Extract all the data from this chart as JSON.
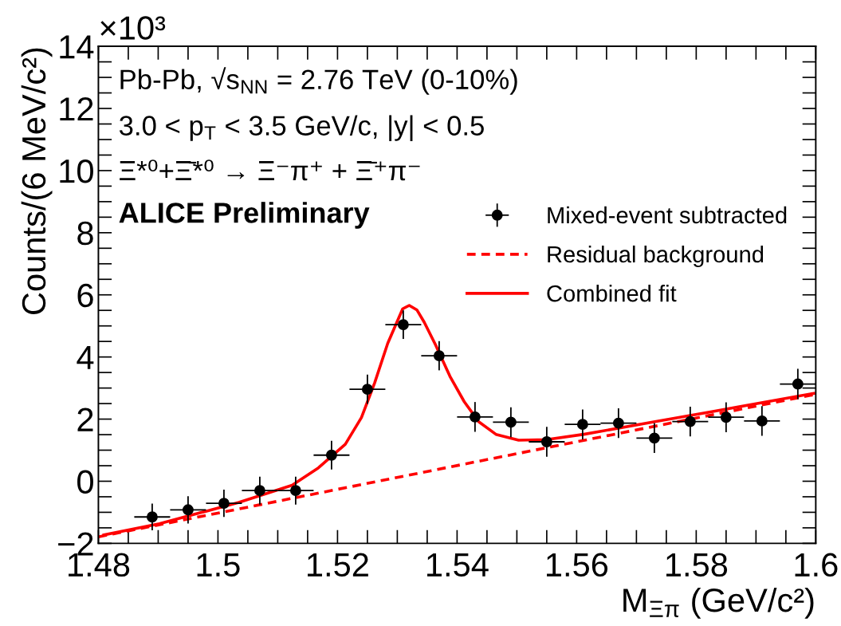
{
  "chart_data": {
    "type": "scatter",
    "xlabel": "M$_{Ξπ}$ (GeV/c²)",
    "ylabel": "Counts/(6 MeV/c²)",
    "xlim": [
      1.48,
      1.6
    ],
    "xticks": [
      1.48,
      1.5,
      1.52,
      1.54,
      1.56,
      1.58,
      1.6
    ],
    "ylim": [
      -2,
      14
    ],
    "yticks": [
      {
        "value": -2,
        "label": "−2"
      },
      0,
      2,
      4,
      6,
      8,
      10,
      12,
      14
    ],
    "legend": "top right",
    "grid": false,
    "annotations": [
      "×10³",
      "Pb-Pb, √s$_{NN}$ = 2.76 TeV (0-10%)",
      "3.0 < p$_{T}$ < 3.5 GeV/c, |y| < 0.5",
      "Ξ*⁰+Ξ̄*⁰ → Ξ⁻π⁺ + Ξ̄⁺π⁻",
      "ALICE Preliminary"
    ],
    "series": [
      {
        "name": "Mixed-event subtracted",
        "color": "#000000",
        "marker": "circle",
        "x": [
          1.489,
          1.495,
          1.501,
          1.507,
          1.513,
          1.519,
          1.525,
          1.531,
          1.537,
          1.543,
          1.549,
          1.555,
          1.561,
          1.567,
          1.573,
          1.579,
          1.585,
          1.591,
          1.597
        ],
        "values": [
          -1.15,
          -0.92,
          -0.71,
          -0.3,
          -0.3,
          0.84,
          2.96,
          5.04,
          4.04,
          2.07,
          1.9,
          1.27,
          1.83,
          1.87,
          1.39,
          1.92,
          2.06,
          1.94,
          3.13
        ],
        "errors": [
          0.43,
          0.44,
          0.44,
          0.45,
          0.45,
          0.46,
          0.47,
          0.46,
          0.47,
          0.48,
          0.48,
          0.48,
          0.48,
          0.48,
          0.48,
          0.48,
          0.48,
          0.48,
          0.49
        ],
        "xerrors": [
          0.003,
          0.003,
          0.003,
          0.003,
          0.003,
          0.003,
          0.003,
          0.003,
          0.003,
          0.003,
          0.003,
          0.003,
          0.003,
          0.003,
          0.003,
          0.003,
          0.003,
          0.003,
          0.003
        ]
      },
      {
        "name": "Residual background",
        "type": "line",
        "color": "#ff0000",
        "line_style": "dashed",
        "x": [
          1.48,
          1.6
        ],
        "values": [
          -1.79,
          2.8
        ]
      },
      {
        "name": "Combined fit",
        "type": "line",
        "color": "#ff0000",
        "line_style": "solid",
        "x": [
          1.4809,
          1.4902,
          1.5035,
          1.5124,
          1.5168,
          1.5213,
          1.524,
          1.5262,
          1.5284,
          1.5309,
          1.532,
          1.5333,
          1.5345,
          1.5364,
          1.5388,
          1.5412,
          1.5436,
          1.5465,
          1.5503,
          1.555,
          1.5612,
          1.5731,
          1.5826,
          1.5997
        ],
        "values": [
          -1.73,
          -1.37,
          -0.68,
          -0.13,
          0.43,
          1.19,
          2.05,
          3.16,
          4.44,
          5.55,
          5.66,
          5.51,
          5.12,
          4.39,
          3.38,
          2.56,
          1.92,
          1.51,
          1.32,
          1.34,
          1.51,
          1.92,
          2.24,
          2.83
        ]
      }
    ]
  }
}
